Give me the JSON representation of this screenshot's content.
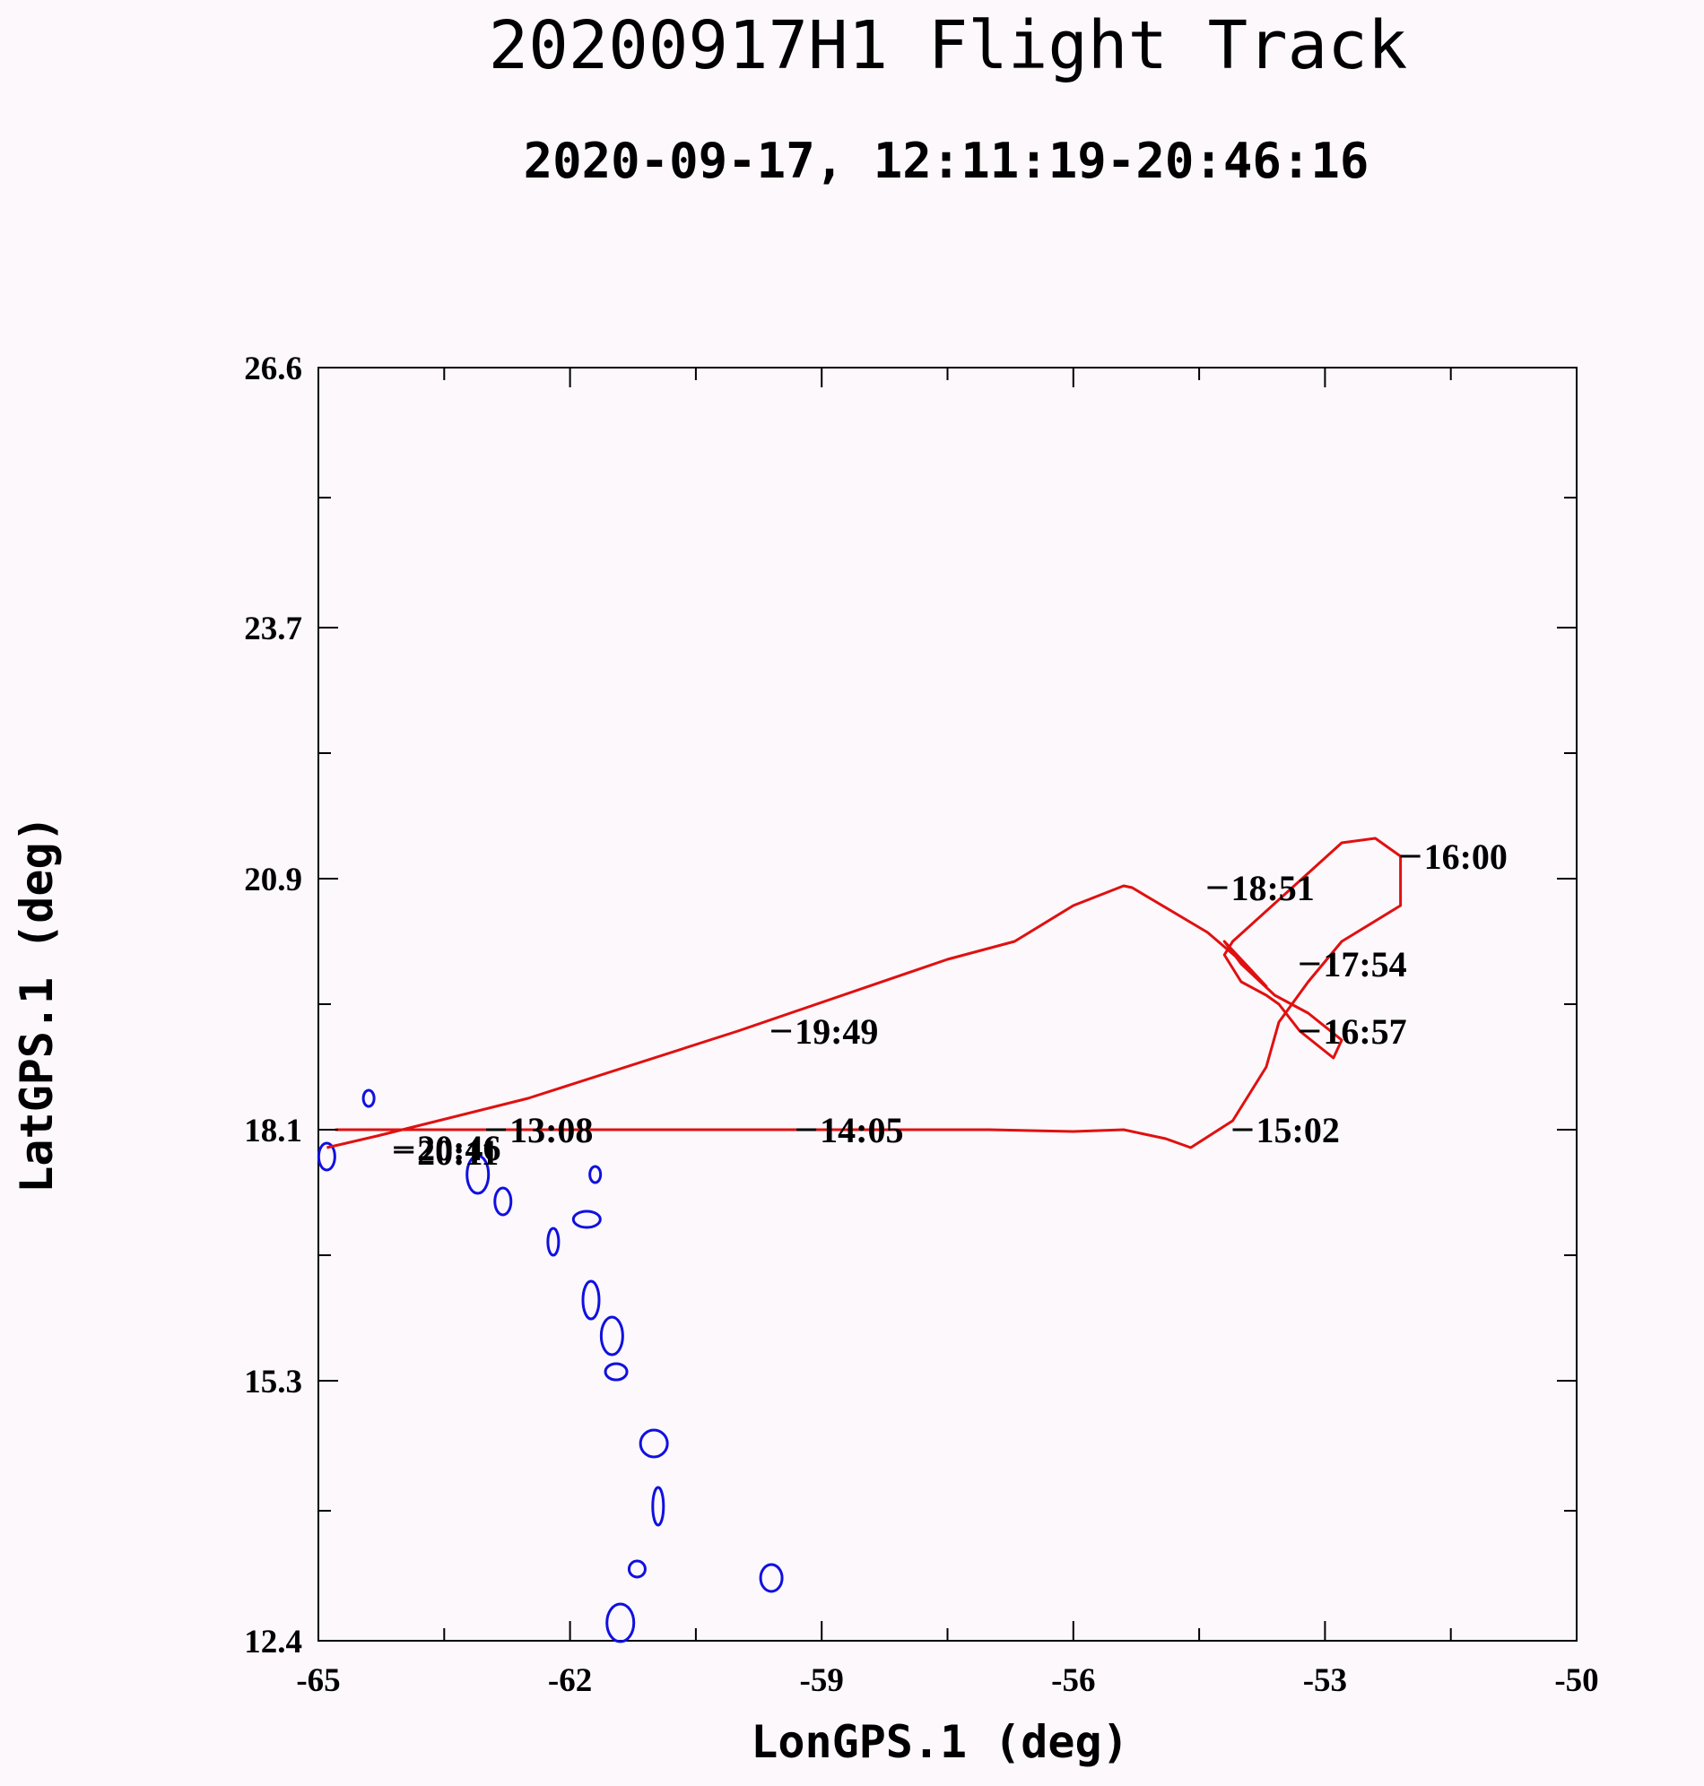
{
  "chart_data": {
    "type": "line",
    "title": "20200917H1 Flight Track",
    "subtitle": "2020-09-17, 12:11:19-20:46:16",
    "xlabel": "LonGPS.1 (deg)",
    "ylabel": "LatGPS.1 (deg)",
    "xlim": [
      -65,
      -50
    ],
    "ylim": [
      12.4,
      26.6
    ],
    "x_ticks": [
      -65,
      -62,
      -59,
      -56,
      -53,
      -50
    ],
    "x_tick_labels": [
      "-65",
      "-62",
      "-59",
      "-56",
      "-53",
      "-50"
    ],
    "y_ticks": [
      12.4,
      15.3,
      18.1,
      20.9,
      23.7,
      26.6
    ],
    "y_tick_labels": [
      "12.4",
      "15.3",
      "18.1",
      "20.9",
      "23.7",
      "26.6"
    ],
    "grid": false,
    "colors": {
      "track": "#e01010",
      "coastline": "#1010e0",
      "marker": "#000000",
      "background": "#fcf8fc"
    },
    "series": [
      {
        "x": [
          -64.8,
          -64.3,
          -62.5,
          -59.0,
          -57.0,
          -56.0,
          -55.4,
          -54.9,
          -54.6,
          -54.1,
          -53.7,
          -53.55,
          -53.2,
          -52.8,
          -52.1,
          -52.1,
          -52.4,
          -52.8,
          -54.1,
          -54.2,
          -54.0,
          -53.7,
          -53.55,
          -53.3,
          -52.9,
          -52.8,
          -53.2,
          -53.6,
          -54.0,
          -54.2,
          -53.7,
          -53.9,
          -54.4,
          -55.3,
          -55.4,
          -56.0,
          -56.7,
          -57.5,
          -60.0,
          -62.5,
          -64.3,
          -64.9
        ],
        "y": [
          18.1,
          18.1,
          18.1,
          18.1,
          18.1,
          18.08,
          18.1,
          18.0,
          17.9,
          18.2,
          18.8,
          19.3,
          19.75,
          20.2,
          20.6,
          21.15,
          21.35,
          21.3,
          20.2,
          20.05,
          19.75,
          19.6,
          19.5,
          19.2,
          18.9,
          19.1,
          19.4,
          19.6,
          19.95,
          20.2,
          19.7,
          19.9,
          20.3,
          20.8,
          20.82,
          20.6,
          20.2,
          20.0,
          19.2,
          18.45,
          18.03,
          17.9
        ]
      }
    ],
    "time_annotations": [
      {
        "time": "14:05",
        "x": -59.3,
        "y": 18.1
      },
      {
        "time": "15:02",
        "x": -54.1,
        "y": 18.1
      },
      {
        "time": "16:00",
        "x": -52.1,
        "y": 21.15
      },
      {
        "time": "16:57",
        "x": -53.3,
        "y": 19.2
      },
      {
        "time": "17:54",
        "x": -53.3,
        "y": 19.95
      },
      {
        "time": "18:51",
        "x": -54.4,
        "y": 20.8
      },
      {
        "time": "19:49",
        "x": -59.6,
        "y": 19.2
      },
      {
        "time": "13:08",
        "x": -63.0,
        "y": 18.1
      },
      {
        "time": "20:46",
        "x": -64.1,
        "y": 17.9
      },
      {
        "time": "20:11",
        "x": -64.1,
        "y": 17.85
      }
    ],
    "coastline_islands": [
      {
        "x": -64.4,
        "y": 18.45
      },
      {
        "x": -64.9,
        "y": 17.8
      },
      {
        "x": -63.1,
        "y": 17.6
      },
      {
        "x": -61.8,
        "y": 17.1
      },
      {
        "x": -62.2,
        "y": 16.85
      },
      {
        "x": -61.75,
        "y": 16.2
      },
      {
        "x": -61.45,
        "y": 15.4
      },
      {
        "x": -61.0,
        "y": 14.6
      },
      {
        "x": -60.95,
        "y": 13.9
      },
      {
        "x": -61.2,
        "y": 13.2
      },
      {
        "x": -59.6,
        "y": 13.1
      },
      {
        "x": -61.4,
        "y": 12.6
      },
      {
        "x": -61.7,
        "y": 17.6
      },
      {
        "x": -62.8,
        "y": 17.3
      },
      {
        "x": -61.5,
        "y": 15.8
      }
    ]
  }
}
